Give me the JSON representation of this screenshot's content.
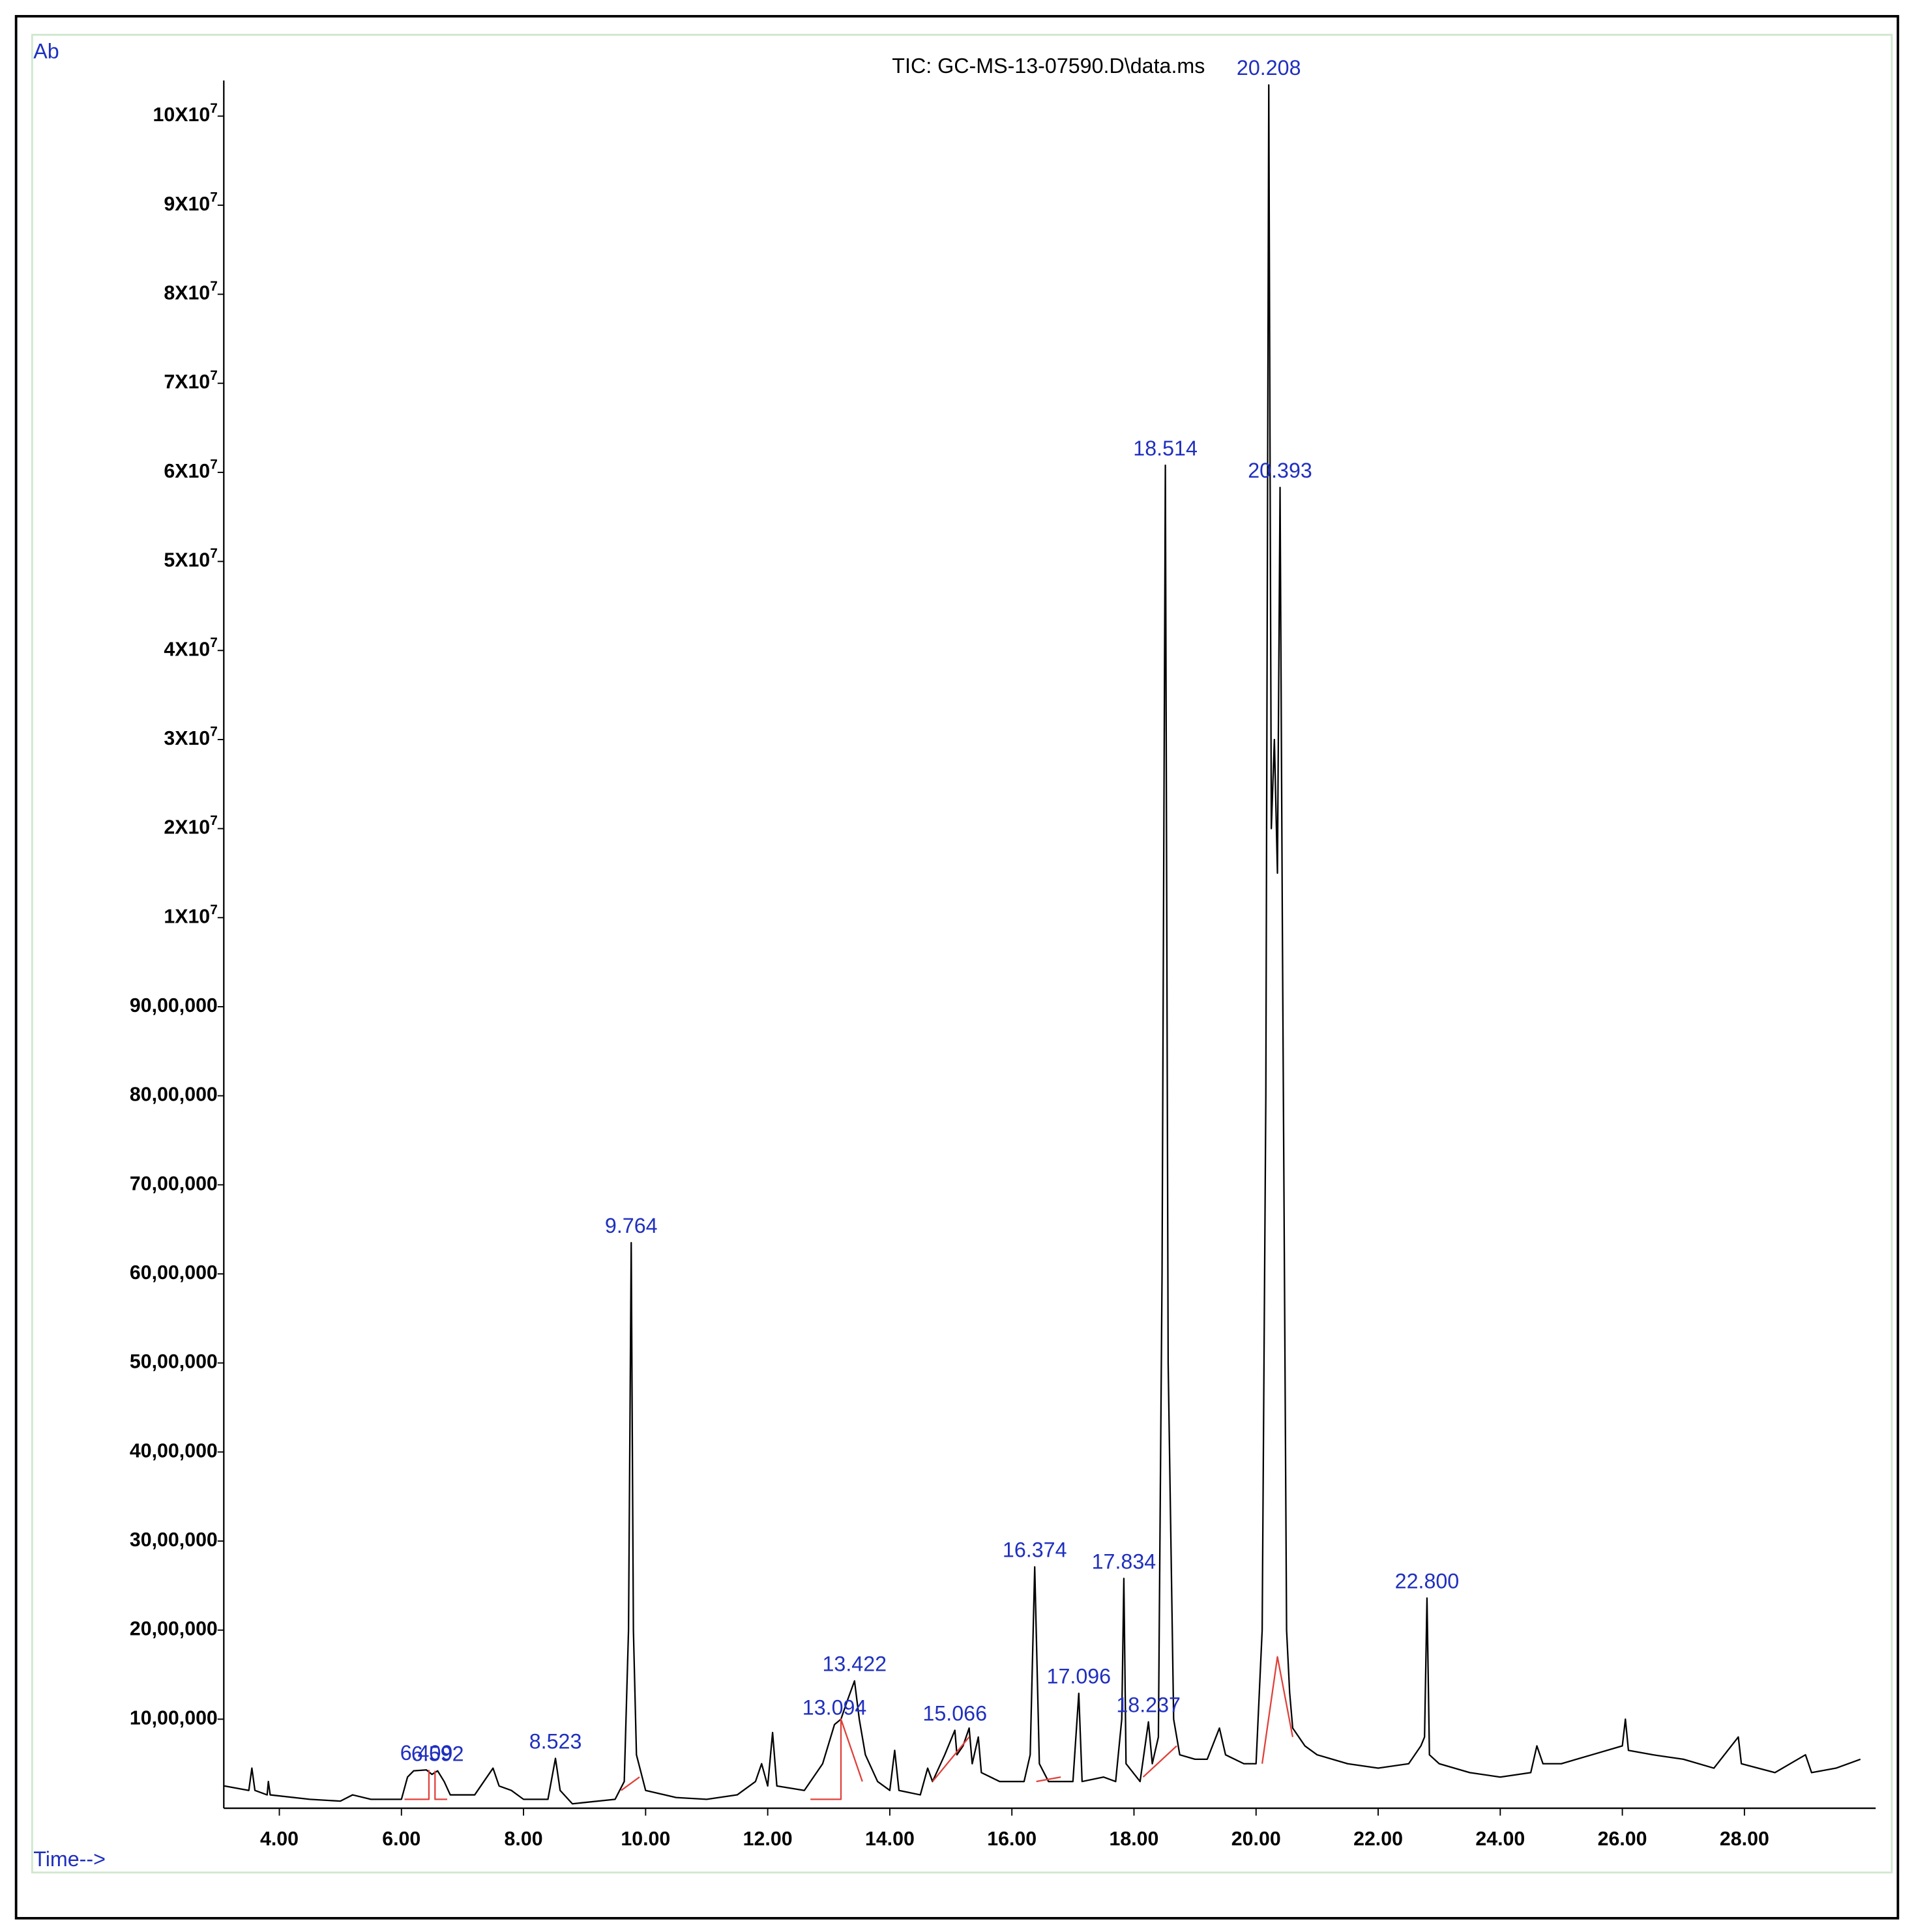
{
  "chart_data": {
    "type": "line",
    "title": "TIC: GC-MS-13-07590.D\\data.ms",
    "ylabel": "Ab",
    "xlabel": "Time-->",
    "xlim": [
      3.09,
      30.15
    ],
    "xticks": [
      {
        "value": 4,
        "label": "4.00"
      },
      {
        "value": 6,
        "label": "6.00"
      },
      {
        "value": 8,
        "label": "8.00"
      },
      {
        "value": 10,
        "label": "10.00"
      },
      {
        "value": 12,
        "label": "12.00"
      },
      {
        "value": 14,
        "label": "14.00"
      },
      {
        "value": 16,
        "label": "16.00"
      },
      {
        "value": 18,
        "label": "18.00"
      },
      {
        "value": 20,
        "label": "20.00"
      },
      {
        "value": 22,
        "label": "22.00"
      },
      {
        "value": 24,
        "label": "24.00"
      },
      {
        "value": 26,
        "label": "26.00"
      },
      {
        "value": 28,
        "label": "28.00"
      }
    ],
    "ylim": [
      0,
      104000000
    ],
    "yscale": "piecewise",
    "yticks": [
      {
        "value": 1000000,
        "label": "10,00,000"
      },
      {
        "value": 2000000,
        "label": "20,00,000"
      },
      {
        "value": 3000000,
        "label": "30,00,000"
      },
      {
        "value": 4000000,
        "label": "40,00,000"
      },
      {
        "value": 5000000,
        "label": "50,00,000"
      },
      {
        "value": 6000000,
        "label": "60,00,000"
      },
      {
        "value": 7000000,
        "label": "70,00,000"
      },
      {
        "value": 8000000,
        "label": "80,00,000"
      },
      {
        "value": 9000000,
        "label": "90,00,000"
      },
      {
        "value": 10000000,
        "label": "1X10",
        "sup": "7"
      },
      {
        "value": 20000000,
        "label": "2X10",
        "sup": "7"
      },
      {
        "value": 30000000,
        "label": "3X10",
        "sup": "7"
      },
      {
        "value": 40000000,
        "label": "4X10",
        "sup": "7"
      },
      {
        "value": 50000000,
        "label": "5X10",
        "sup": "7"
      },
      {
        "value": 60000000,
        "label": "6X10",
        "sup": "7"
      },
      {
        "value": 70000000,
        "label": "7X10",
        "sup": "7"
      },
      {
        "value": 80000000,
        "label": "8X10",
        "sup": "7"
      },
      {
        "value": 90000000,
        "label": "9X10",
        "sup": "7"
      },
      {
        "value": 100000000,
        "label": "10X10",
        "sup": "7"
      }
    ],
    "series": [
      {
        "color": "#000000",
        "x": [
          3.1,
          3.5,
          3.55,
          3.6,
          3.8,
          3.82,
          3.85,
          4.5,
          5.0,
          5.2,
          5.5,
          6.0,
          6.1,
          6.2,
          6.409,
          6.5,
          6.592,
          6.7,
          6.8,
          7.2,
          7.5,
          7.6,
          7.8,
          8.0,
          8.4,
          8.523,
          8.6,
          8.8,
          9.5,
          9.65,
          9.72,
          9.764,
          9.8,
          9.85,
          10.0,
          10.5,
          11.0,
          11.5,
          11.8,
          11.9,
          12.0,
          12.08,
          12.15,
          12.6,
          12.9,
          13.094,
          13.2,
          13.3,
          13.422,
          13.5,
          13.6,
          13.8,
          14.0,
          14.08,
          14.15,
          14.5,
          14.62,
          14.7,
          14.9,
          15.066,
          15.1,
          15.2,
          15.3,
          15.35,
          15.45,
          15.5,
          15.8,
          16.2,
          16.3,
          16.374,
          16.45,
          16.6,
          17.0,
          17.096,
          17.15,
          17.5,
          17.7,
          17.8,
          17.834,
          17.87,
          18.1,
          18.237,
          18.3,
          18.4,
          18.46,
          18.514,
          18.56,
          18.65,
          18.75,
          19.0,
          19.2,
          19.4,
          19.5,
          19.8,
          20.0,
          20.1,
          20.16,
          20.208,
          20.25,
          20.3,
          20.35,
          20.393,
          20.43,
          20.5,
          20.55,
          20.6,
          20.8,
          21.0,
          21.5,
          22.0,
          22.5,
          22.7,
          22.76,
          22.8,
          22.84,
          23.0,
          23.5,
          24.0,
          24.5,
          24.6,
          24.7,
          25.0,
          25.5,
          26.0,
          26.05,
          26.1,
          26.5,
          27.0,
          27.5,
          27.9,
          27.95,
          28.5,
          29.0,
          29.1,
          29.5,
          29.9
        ],
        "values": [
          250000.0,
          200000.0,
          450000.0,
          200000.0,
          150000.0,
          300000.0,
          150000.0,
          100000.0,
          80000.0,
          150000.0,
          100000.0,
          100000.0,
          350000.0,
          420000.0,
          430000.0,
          380000.0,
          420000.0,
          300000.0,
          150000.0,
          150000.0,
          450000.0,
          250000.0,
          200000.0,
          100000.0,
          100000.0,
          560000.0,
          200000.0,
          50000.0,
          100000.0,
          300000.0,
          2000000.0,
          6350000.0,
          2000000.0,
          600000.0,
          200000.0,
          120000.0,
          100000.0,
          150000.0,
          300000.0,
          500000.0,
          250000.0,
          850000.0,
          250000.0,
          200000.0,
          500000.0,
          940000.0,
          1000000.0,
          1200000.0,
          1430000.0,
          1000000.0,
          600000.0,
          300000.0,
          200000.0,
          650000.0,
          200000.0,
          150000.0,
          450000.0,
          300000.0,
          600000.0,
          875000.0,
          600000.0,
          700000.0,
          900000.0,
          500000.0,
          800000.0,
          400000.0,
          300000.0,
          300000.0,
          600000.0,
          2710000.0,
          500000.0,
          300000.0,
          300000.0,
          1290000.0,
          300000.0,
          350000.0,
          300000.0,
          1000000.0,
          2580000.0,
          500000.0,
          300000.0,
          970000.0,
          500000.0,
          800000.0,
          6000000.0,
          60800000.0,
          5000000.0,
          1000000.0,
          600000.0,
          550000.0,
          550000.0,
          900000.0,
          600000.0,
          500000.0,
          500000.0,
          2000000.0,
          8000000.0,
          103500000.0,
          20000000.0,
          30000000.0,
          15000000.0,
          58300000.0,
          10000000.0,
          2000000.0,
          1300000.0,
          900000.0,
          700000.0,
          600000.0,
          500000.0,
          450000.0,
          500000.0,
          700000.0,
          800000.0,
          2360000.0,
          600000.0,
          500000.0,
          400000.0,
          350000.0,
          400000.0,
          700000.0,
          500000.0,
          500000.0,
          600000.0,
          700000.0,
          1000000.0,
          650000.0,
          600000.0,
          550000.0,
          450000.0,
          800000.0,
          500000.0,
          400000.0,
          600000.0,
          400000.0,
          450000.0,
          550000.0
        ]
      },
      {
        "color": "#e0403a",
        "x": [
          6.05,
          6.45,
          6.45,
          null,
          6.55,
          6.55,
          6.75,
          null,
          9.6,
          9.9,
          null,
          12.7,
          13.2,
          13.2,
          13.55,
          null,
          14.7,
          15.3,
          null,
          16.4,
          16.8,
          null,
          18.15,
          18.7,
          null,
          20.1,
          20.35,
          20.6
        ],
        "values": [
          100000.0,
          100000.0,
          430000.0,
          null,
          420000.0,
          100000.0,
          100000.0,
          null,
          200000.0,
          350000.0,
          null,
          100000.0,
          100000.0,
          1000000.0,
          300000.0,
          null,
          300000.0,
          800000.0,
          null,
          300000.0,
          350000.0,
          null,
          350000.0,
          700000.0,
          null,
          500000.0,
          1700000.0,
          800000.0
        ]
      }
    ],
    "annotations": [
      {
        "text": "6.409",
        "x": 6.409,
        "y": 430000.0
      },
      {
        "text": "6.592",
        "x": 6.592,
        "y": 420000.0
      },
      {
        "text": "8.523",
        "x": 8.523,
        "y": 560000.0
      },
      {
        "text": "9.764",
        "x": 9.764,
        "y": 6350000.0
      },
      {
        "text": "13.094",
        "x": 13.094,
        "y": 940000.0
      },
      {
        "text": "13.422",
        "x": 13.422,
        "y": 1430000.0
      },
      {
        "text": "15.066",
        "x": 15.066,
        "y": 875000.0
      },
      {
        "text": "16.374",
        "x": 16.374,
        "y": 2710000.0
      },
      {
        "text": "17.096",
        "x": 17.096,
        "y": 1290000.0
      },
      {
        "text": "17.834",
        "x": 17.834,
        "y": 2580000.0
      },
      {
        "text": "18.237",
        "x": 18.237,
        "y": 970000.0
      },
      {
        "text": "18.514",
        "x": 18.514,
        "y": 60800000.0
      },
      {
        "text": "20.208",
        "x": 20.208,
        "y": 103500000.0
      },
      {
        "text": "20.393",
        "x": 20.393,
        "y": 58300000.0
      },
      {
        "text": "22.800",
        "x": 22.8,
        "y": 2360000.0
      }
    ]
  }
}
